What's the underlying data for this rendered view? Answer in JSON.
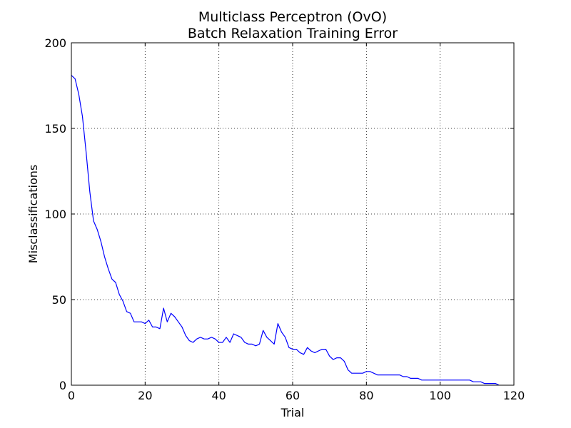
{
  "chart_data": {
    "type": "line",
    "title_line1": "Multiclass Perceptron (OvO)",
    "title_line2": "Batch Relaxation Training Error",
    "xlabel": "Trial",
    "ylabel": "Misclassifications",
    "xlim": [
      0,
      120
    ],
    "ylim": [
      0,
      200
    ],
    "xticks": [
      0,
      20,
      40,
      60,
      80,
      100,
      120
    ],
    "yticks": [
      0,
      50,
      100,
      150,
      200
    ],
    "grid": true,
    "line_color": "#0000ff",
    "series": [
      {
        "x": [
          0,
          1,
          2,
          3,
          4,
          5,
          6,
          7,
          8,
          9,
          10,
          11,
          12,
          13,
          14,
          15,
          16,
          17,
          18,
          19,
          20,
          21,
          22,
          23,
          24,
          25,
          26,
          27,
          28,
          29,
          30,
          31,
          32,
          33,
          34,
          35,
          36,
          37,
          38,
          39,
          40,
          41,
          42,
          43,
          44,
          45,
          46,
          47,
          48,
          49,
          50,
          51,
          52,
          53,
          54,
          55,
          56,
          57,
          58,
          59,
          60,
          61,
          62,
          63,
          64,
          65,
          66,
          67,
          68,
          69,
          70,
          71,
          72,
          73,
          74,
          75,
          76,
          77,
          78,
          79,
          80,
          81,
          82,
          83,
          84,
          85,
          86,
          87,
          88,
          89,
          90,
          91,
          92,
          93,
          94,
          95,
          96,
          97,
          98,
          99,
          100,
          101,
          102,
          103,
          104,
          105,
          106,
          107,
          108,
          109,
          110,
          111,
          112,
          113,
          114,
          115,
          116
        ],
        "y": [
          181,
          179,
          170,
          157,
          136,
          113,
          96,
          91,
          84,
          75,
          68,
          62,
          60,
          53,
          49,
          43,
          42,
          37,
          37,
          37,
          36,
          38,
          34,
          34,
          33,
          45,
          37,
          42,
          40,
          37,
          34,
          29,
          26,
          25,
          27,
          28,
          27,
          27,
          28,
          27,
          25,
          25,
          28,
          25,
          30,
          29,
          28,
          25,
          24,
          24,
          23,
          24,
          32,
          28,
          26,
          24,
          36,
          31,
          28,
          22,
          21,
          21,
          19,
          18,
          22,
          20,
          19,
          20,
          21,
          21,
          17,
          15,
          16,
          16,
          14,
          9,
          7,
          7,
          7,
          7,
          8,
          8,
          7,
          6,
          6,
          6,
          6,
          6,
          6,
          6,
          5,
          5,
          4,
          4,
          4,
          3,
          3,
          3,
          3,
          3,
          3,
          3,
          3,
          3,
          3,
          3,
          3,
          3,
          3,
          2,
          2,
          2,
          1,
          1,
          1,
          1,
          0
        ]
      }
    ]
  }
}
